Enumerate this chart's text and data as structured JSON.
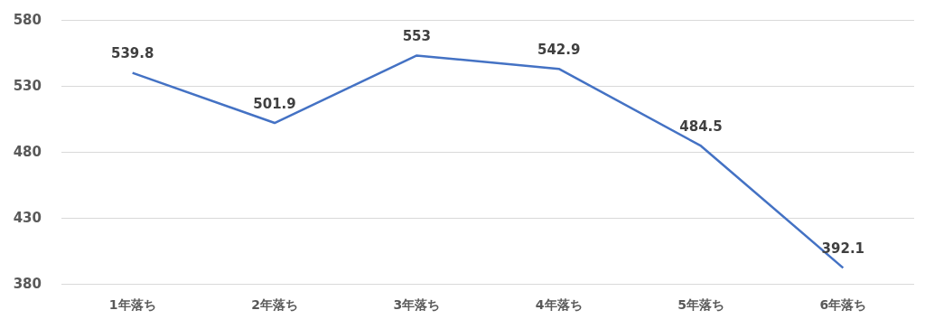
{
  "chart_data": {
    "type": "line",
    "categories": [
      "1年落ち",
      "2年落ち",
      "3年落ち",
      "4年落ち",
      "5年落ち",
      "6年落ち"
    ],
    "series": [
      {
        "color": "#4472c4",
        "values": [
          539.8,
          501.9,
          553,
          542.9,
          484.5,
          392.1
        ]
      }
    ],
    "ylim": [
      380,
      580
    ],
    "yticks": [
      380,
      430,
      480,
      530,
      580
    ],
    "grid": "y",
    "data_labels": true,
    "marker": "none",
    "line_style": "solid"
  }
}
